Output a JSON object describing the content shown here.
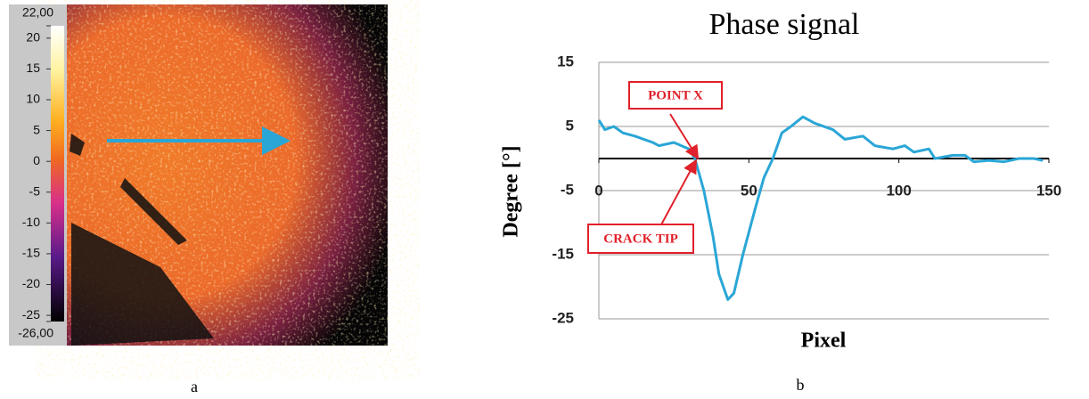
{
  "chart_data": [
    {
      "type": "heatmap",
      "caption": "a",
      "colorbar": {
        "lim": [
          -26,
          22
        ],
        "ticks": [
          {
            "value": 22,
            "label": "22,00"
          },
          20,
          15,
          10,
          5,
          0,
          -5,
          -10,
          -15,
          -20,
          -25,
          {
            "value": -26,
            "label": "-26,00"
          }
        ]
      }
    },
    {
      "type": "line",
      "caption": "b",
      "title": "Phase signal",
      "x_label": "Pixel",
      "y_label": "Degree [°]",
      "x": [
        0,
        2,
        5,
        8,
        12,
        15,
        18,
        20,
        25,
        30,
        32,
        35,
        38,
        40,
        43,
        45,
        48,
        52,
        55,
        58,
        61,
        64,
        68,
        72,
        78,
        82,
        88,
        92,
        98,
        102,
        105,
        110,
        112,
        118,
        122,
        125,
        130,
        135,
        140,
        145,
        148
      ],
      "values": [
        6,
        4.5,
        5,
        4,
        3.5,
        3,
        2.5,
        2,
        2.5,
        1.5,
        0,
        -5,
        -12,
        -18,
        -22,
        -21,
        -15,
        -8,
        -3,
        0,
        4,
        5,
        6.5,
        5.5,
        4.5,
        3,
        3.5,
        2,
        1.5,
        2,
        1,
        1.5,
        0,
        0.5,
        0.5,
        -0.5,
        -0.3,
        -0.5,
        0,
        0,
        -0.3
      ],
      "color": "#2aa6d6",
      "xlim": [
        0,
        150
      ],
      "xticks": [
        0,
        50,
        100,
        150
      ],
      "ylim": [
        -25,
        15
      ],
      "yticks": [
        15,
        5,
        -5,
        -15,
        -25
      ],
      "grid": true,
      "annotations": [
        {
          "text": "POINT X"
        },
        {
          "text": "CRACK TIP"
        }
      ]
    }
  ]
}
